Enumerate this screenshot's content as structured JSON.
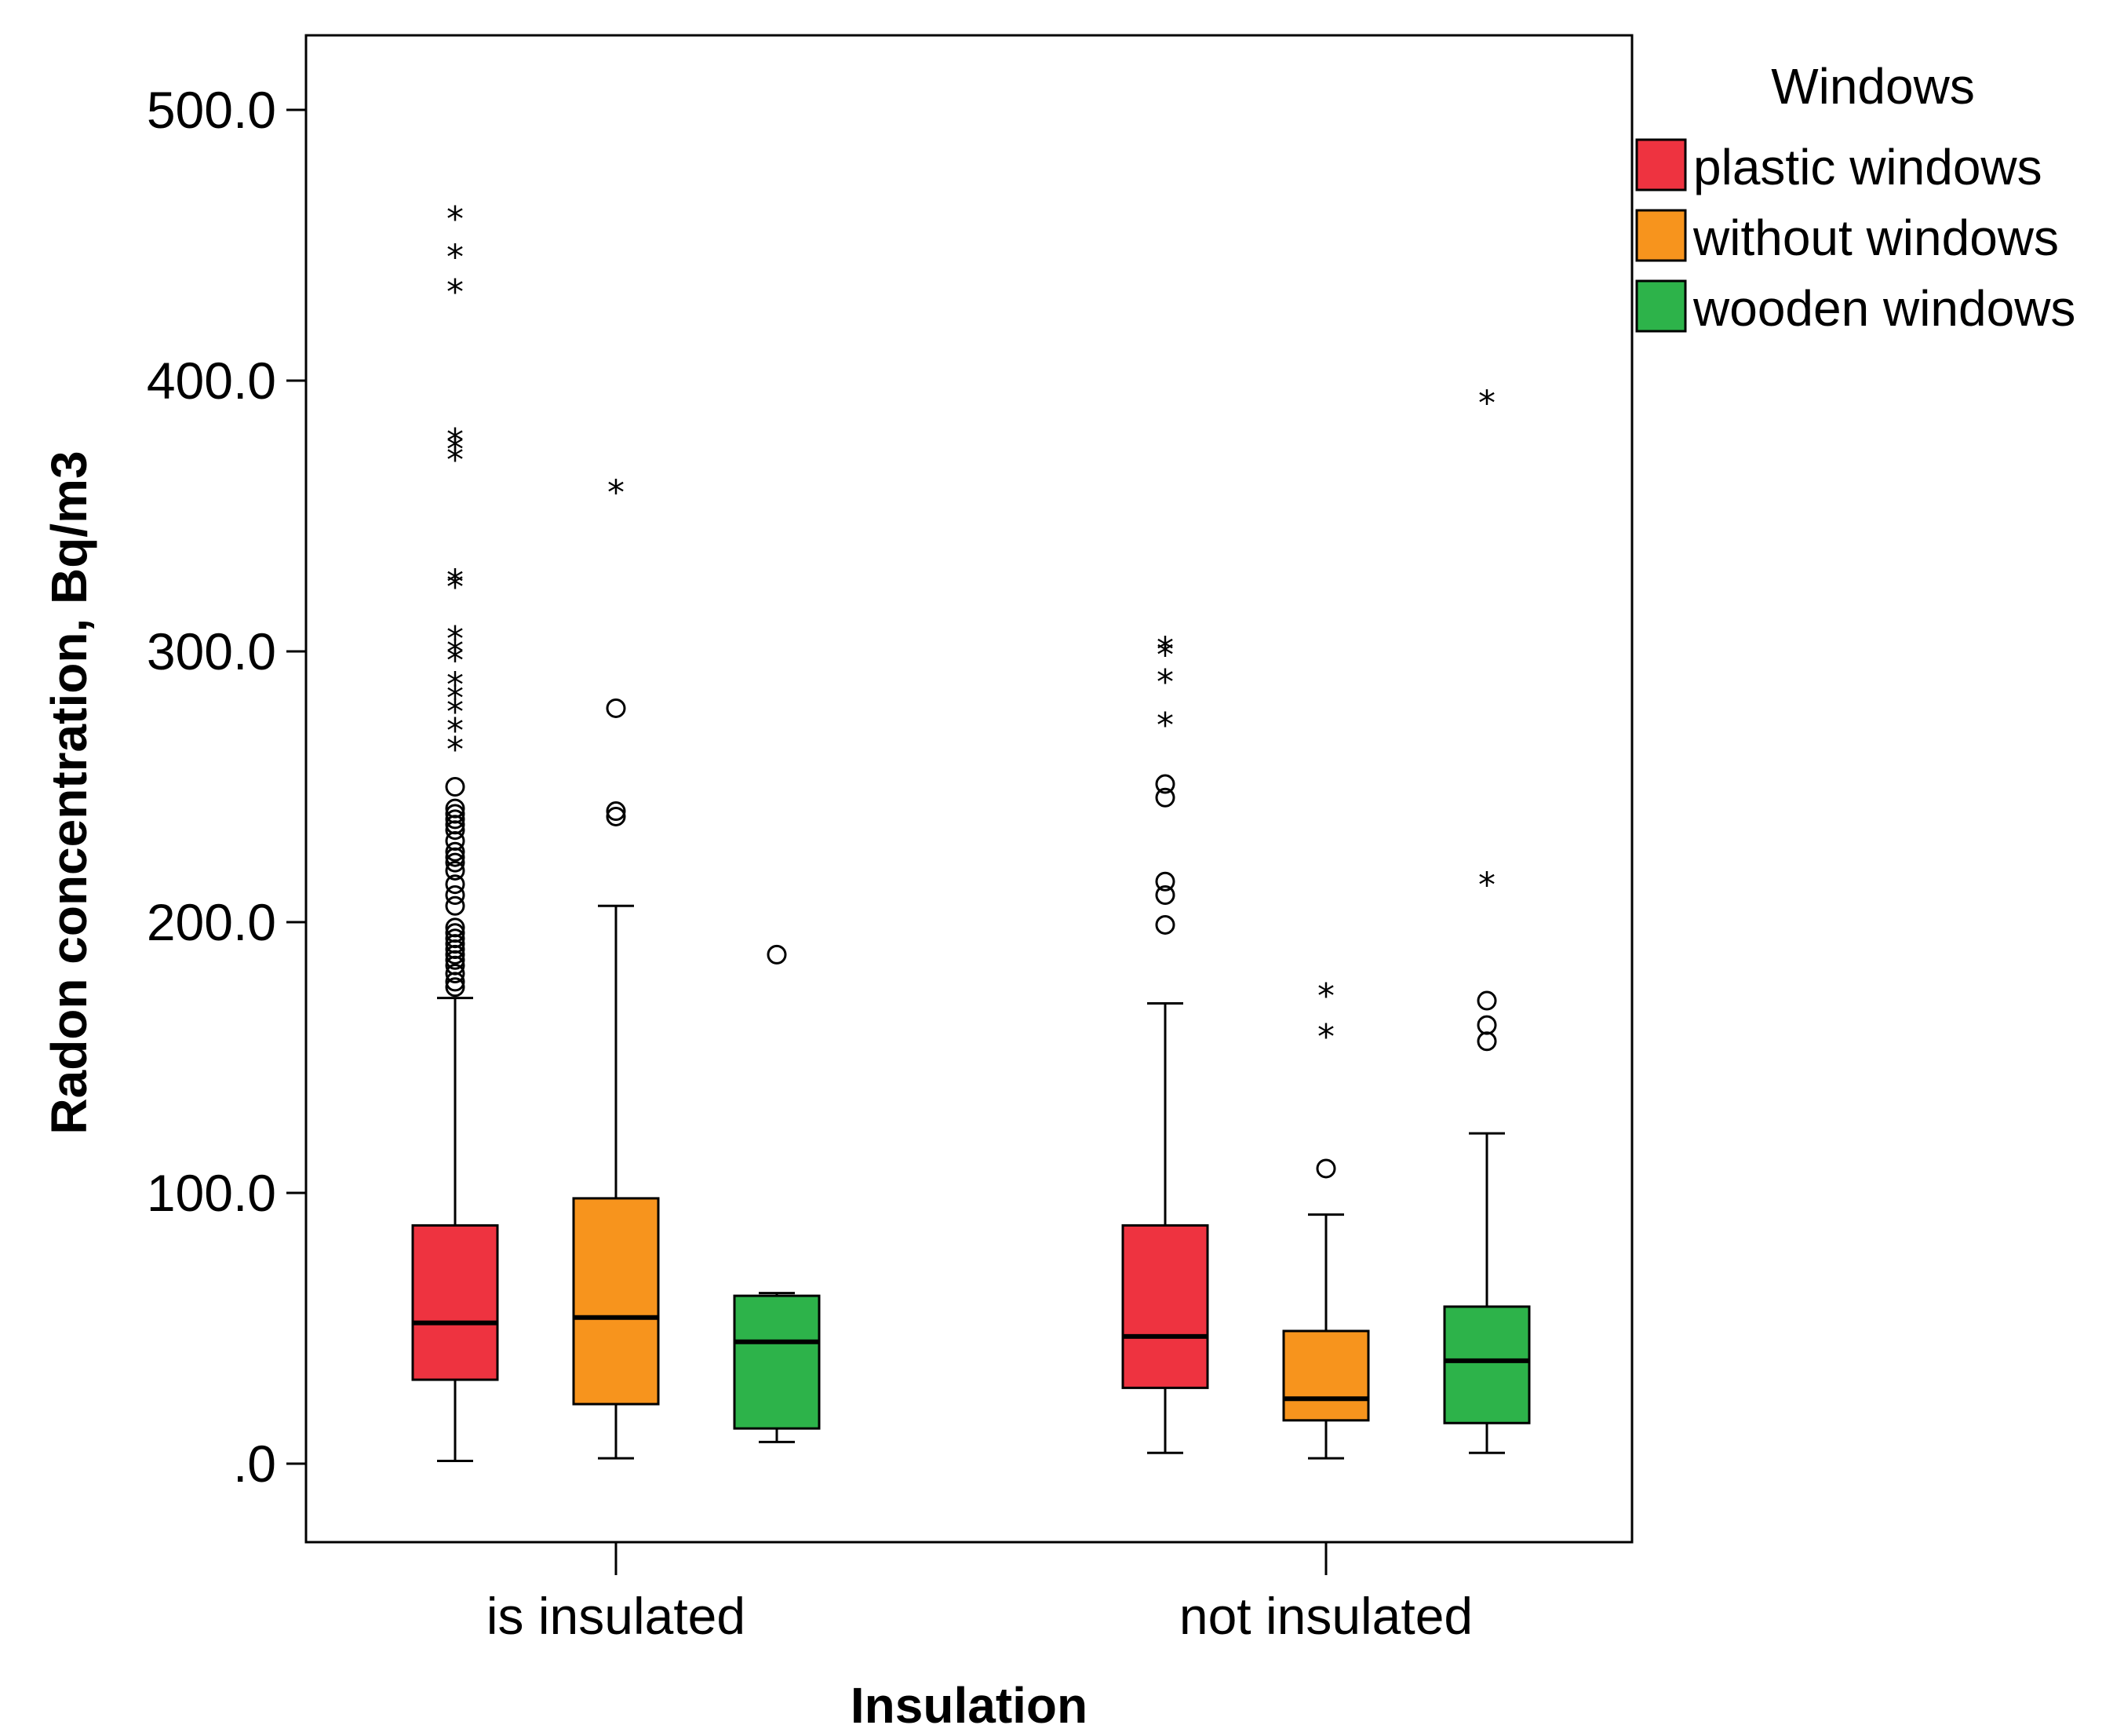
{
  "chart_data": {
    "type": "boxplot",
    "title": "",
    "xlabel": "Insulation",
    "ylabel": "Radon concentration, Bq/m3",
    "ylim": [
      -27,
      527
    ],
    "y_ticks": [
      0,
      100,
      200,
      300,
      400,
      500
    ],
    "y_tick_labels": [
      ".0",
      "100.0",
      "200.0",
      "300.0",
      "400.0",
      "500.0"
    ],
    "categories": [
      "is insulated",
      "not insulated"
    ],
    "legend_title": "Windows",
    "legend_position": "right-top",
    "series": [
      {
        "name": "plastic windows",
        "color": "#ee3340",
        "boxes": [
          {
            "min": 1,
            "q1": 31,
            "median": 52,
            "q3": 88,
            "max": 172,
            "outliers": [
              176,
              178,
              181,
              184,
              186,
              188,
              190,
              192,
              194,
              196,
              198,
              206,
              210,
              214,
              219,
              222,
              224,
              226,
              230,
              234,
              236,
              238,
              240,
              242,
              250
            ],
            "extremes": [
              264,
              271,
              278,
              283,
              288,
              297,
              300,
              305,
              324,
              326,
              371,
              375,
              378,
              433,
              446,
              460
            ]
          },
          {
            "min": 4,
            "q1": 28,
            "median": 47,
            "q3": 88,
            "max": 170,
            "outliers": [
              199,
              210,
              215,
              246,
              251
            ],
            "extremes": [
              273,
              289,
              299,
              301
            ]
          }
        ]
      },
      {
        "name": "without windows",
        "color": "#f7941d",
        "boxes": [
          {
            "min": 2,
            "q1": 22,
            "median": 54,
            "q3": 98,
            "max": 206,
            "outliers": [
              239,
              241,
              279
            ],
            "extremes": [
              359
            ]
          },
          {
            "min": 2,
            "q1": 16,
            "median": 24,
            "q3": 49,
            "max": 92,
            "outliers": [
              109
            ],
            "extremes": [
              158,
              173
            ]
          }
        ]
      },
      {
        "name": "wooden windows",
        "color": "#2db34a",
        "boxes": [
          {
            "min": 8,
            "q1": 13,
            "median": 45,
            "q3": 62,
            "max": 63,
            "outliers": [
              188
            ],
            "extremes": []
          },
          {
            "min": 4,
            "q1": 15,
            "median": 38,
            "q3": 58,
            "max": 122,
            "outliers": [
              156,
              162,
              171
            ],
            "extremes": [
              214,
              392
            ]
          }
        ]
      }
    ]
  }
}
